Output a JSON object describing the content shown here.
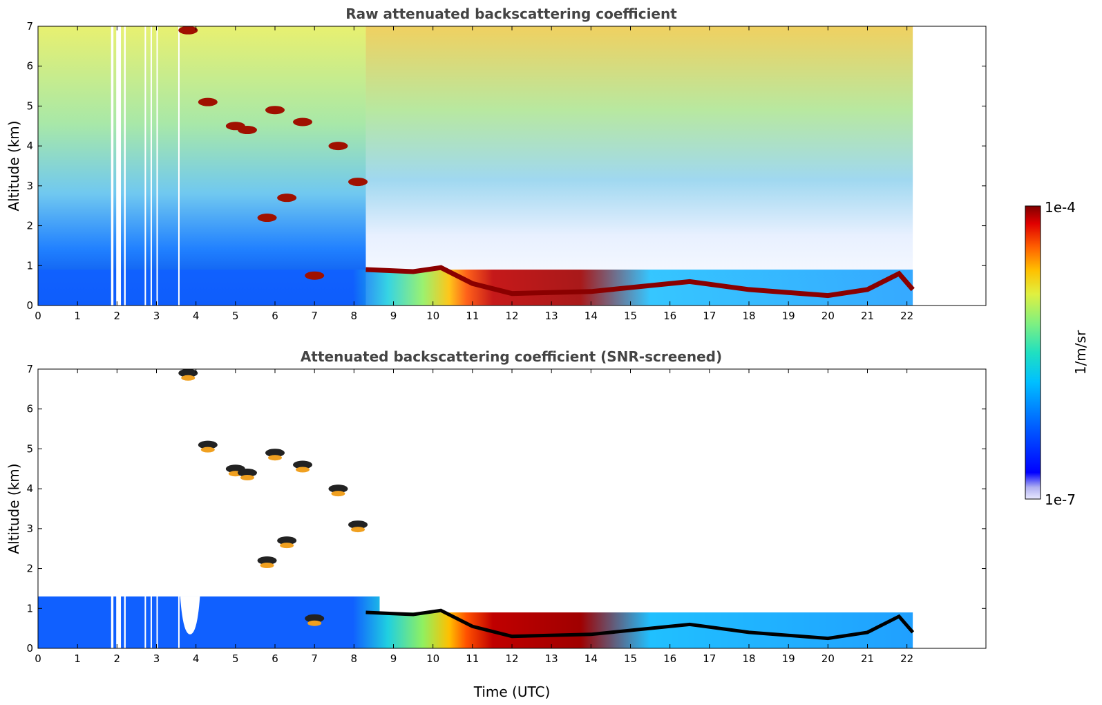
{
  "chart_data": [
    {
      "type": "heatmap",
      "title": "Raw attenuated backscattering coefficient",
      "xlabel": "",
      "ylabel": "Altitude (km)",
      "xlim": [
        0,
        24
      ],
      "ylim": [
        0,
        7
      ],
      "xticks": [
        "0",
        "1",
        "2",
        "3",
        "4",
        "5",
        "6",
        "7",
        "8",
        "9",
        "10",
        "11",
        "12",
        "13",
        "14",
        "15",
        "16",
        "17",
        "18",
        "19",
        "20",
        "21",
        "22"
      ],
      "yticks": [
        "0",
        "1",
        "2",
        "3",
        "4",
        "5",
        "6",
        "7"
      ],
      "data_end_time": 22.15,
      "grid": false,
      "features": {
        "cloud_base_km": [
          {
            "t": 8.3,
            "z": 0.9
          },
          {
            "t": 9.5,
            "z": 0.85
          },
          {
            "t": 10.2,
            "z": 0.95
          },
          {
            "t": 11.0,
            "z": 0.55
          },
          {
            "t": 12.0,
            "z": 0.3
          },
          {
            "t": 14.0,
            "z": 0.35
          },
          {
            "t": 16.5,
            "z": 0.6
          },
          {
            "t": 18.0,
            "z": 0.4
          },
          {
            "t": 20.0,
            "z": 0.25
          },
          {
            "t": 21.0,
            "z": 0.4
          },
          {
            "t": 21.8,
            "z": 0.8
          },
          {
            "t": 22.15,
            "z": 0.4
          }
        ],
        "elevated_layers_km": [
          {
            "t": 3.8,
            "z": 6.9
          },
          {
            "t": 4.3,
            "z": 5.1
          },
          {
            "t": 5.0,
            "z": 4.5
          },
          {
            "t": 5.3,
            "z": 4.4
          },
          {
            "t": 6.0,
            "z": 4.9
          },
          {
            "t": 6.7,
            "z": 4.6
          },
          {
            "t": 7.6,
            "z": 4.0
          },
          {
            "t": 8.1,
            "z": 3.1
          },
          {
            "t": 6.3,
            "z": 2.7
          },
          {
            "t": 5.8,
            "z": 2.2
          },
          {
            "t": 7.0,
            "z": 0.75
          }
        ]
      }
    },
    {
      "type": "heatmap",
      "title": "Attenuated backscattering coefficient (SNR-screened)",
      "xlabel": "Time (UTC)",
      "ylabel": "Altitude (km)",
      "xlim": [
        0,
        24
      ],
      "ylim": [
        0,
        7
      ],
      "xticks": [
        "0",
        "1",
        "2",
        "3",
        "4",
        "5",
        "6",
        "7",
        "8",
        "9",
        "10",
        "11",
        "12",
        "13",
        "14",
        "15",
        "16",
        "17",
        "18",
        "19",
        "20",
        "21",
        "22"
      ],
      "yticks": [
        "0",
        "1",
        "2",
        "3",
        "4",
        "5",
        "6",
        "7"
      ],
      "data_end_time": 22.15,
      "grid": false
    }
  ],
  "colorbar": {
    "label": "1/m/sr",
    "max_label": "1e-4",
    "min_label": "1e-7",
    "scale": "log",
    "range": [
      1e-07,
      0.0001
    ],
    "colors": [
      "#e8e8ff",
      "#b0b0f0",
      "#0000ff",
      "#0060ff",
      "#00c0ff",
      "#20e0c0",
      "#80f080",
      "#e0f040",
      "#ffc000",
      "#ff6000",
      "#e00000",
      "#800000"
    ]
  }
}
